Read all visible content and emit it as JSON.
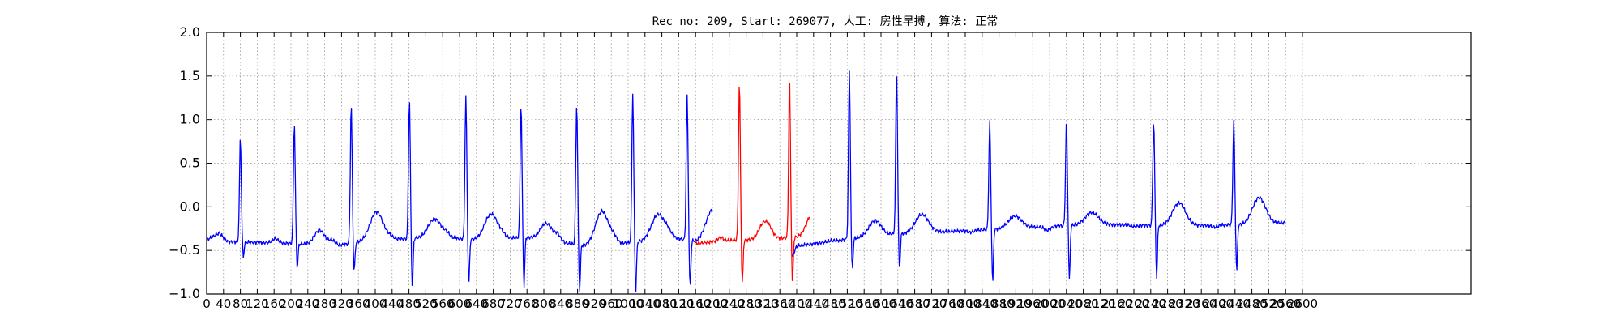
{
  "chart_data": {
    "type": "line",
    "title": "Rec_no: 209, Start: 269077, 人工: 房性早搏, 算法: 正常",
    "xlabel": "",
    "ylabel": "",
    "xlim": [
      0,
      3000
    ],
    "ylim": [
      -1.0,
      2.0
    ],
    "grid": true,
    "x_ticks": [
      0,
      40,
      80,
      120,
      160,
      200,
      240,
      280,
      320,
      360,
      400,
      440,
      480,
      520,
      560,
      600,
      640,
      680,
      720,
      760,
      800,
      840,
      880,
      920,
      960,
      1000,
      1040,
      1080,
      1120,
      1160,
      1200,
      1240,
      1280,
      1320,
      1360,
      1400,
      1440,
      1480,
      1520,
      1560,
      1600,
      1640,
      1680,
      1720,
      1760,
      1800,
      1840,
      1880,
      1920,
      1960,
      2000,
      2040,
      2080,
      2120,
      2160,
      2200,
      2240,
      2280,
      2320,
      2360,
      2400,
      2440,
      2480,
      2520,
      2560,
      2600
    ],
    "y_ticks": [
      -1.0,
      -0.5,
      0.0,
      0.5,
      1.0,
      1.5,
      2.0
    ],
    "x_tick_labels": [
      "0",
      "40",
      "80",
      "120",
      "160",
      "200",
      "240",
      "280",
      "320",
      "360",
      "400",
      "440",
      "480",
      "520",
      "560",
      "600",
      "640",
      "680",
      "720",
      "760",
      "800",
      "840",
      "880",
      "920",
      "960",
      "1000",
      "1040",
      "1080",
      "1120",
      "1160",
      "1200",
      "1240",
      "1280",
      "1320",
      "1360",
      "1400",
      "1440",
      "1480",
      "1520",
      "1560",
      "1600",
      "1640",
      "1680",
      "1720",
      "1760",
      "1800",
      "1840",
      "1880",
      "1920",
      "1960",
      "2000",
      "2040",
      "2080",
      "2120",
      "2160",
      "2200",
      "2240",
      "2280",
      "2320",
      "2360",
      "2400",
      "2440",
      "2480",
      "2520",
      "2560",
      "2600"
    ],
    "y_tick_labels": [
      "−1.0",
      "−0.5",
      "0.0",
      "0.5",
      "1.0",
      "1.5",
      "2.0"
    ],
    "series": [
      {
        "color": "#0000ff",
        "baseline": [
          [
            0,
            -0.38
          ],
          [
            30,
            -0.3
          ],
          [
            50,
            -0.4
          ],
          [
            200,
            -0.42
          ],
          [
            300,
            -0.45
          ],
          [
            400,
            -0.38
          ],
          [
            560,
            -0.35
          ],
          [
            640,
            -0.38
          ],
          [
            760,
            -0.35
          ],
          [
            900,
            -0.45
          ],
          [
            1030,
            -0.4
          ],
          [
            1100,
            -0.35
          ],
          [
            1160,
            -0.4
          ],
          [
            1200,
            -0.4
          ]
        ],
        "beats": [
          {
            "x": 80,
            "r": 0.78,
            "s": -0.58,
            "t": 0.0,
            "tw": 0.0,
            "p": 0.0
          },
          {
            "x": 208,
            "r": 0.96,
            "s": -0.7,
            "t": -0.25,
            "tw": 18,
            "p": -0.32
          },
          {
            "x": 343,
            "r": 1.17,
            "s": -0.75,
            "t": -0.1,
            "tw": 22,
            "p": -0.3
          },
          {
            "x": 481,
            "r": 1.23,
            "s": -0.93,
            "t": -0.15,
            "tw": 22,
            "p": -0.32
          },
          {
            "x": 615,
            "r": 1.26,
            "s": -0.88,
            "t": -0.08,
            "tw": 22,
            "p": -0.3
          },
          {
            "x": 746,
            "r": 1.18,
            "s": -0.92,
            "t": -0.16,
            "tw": 20,
            "p": -0.3
          },
          {
            "x": 878,
            "r": 1.18,
            "s": -0.95,
            "t": -0.05,
            "tw": 22,
            "p": -0.3
          },
          {
            "x": 1011,
            "r": 1.3,
            "s": -0.98,
            "t": -0.12,
            "tw": 22,
            "p": -0.3
          },
          {
            "x": 1140,
            "r": 1.26,
            "s": -0.92,
            "t": -0.02,
            "tw": 22,
            "p": -0.3
          }
        ]
      },
      {
        "color": "#ff0000",
        "baseline": [
          [
            1160,
            -0.42
          ],
          [
            1250,
            -0.38
          ],
          [
            1290,
            -0.38
          ],
          [
            1400,
            -0.35
          ],
          [
            1430,
            -0.32
          ]
        ],
        "beats": [
          {
            "x": 1264,
            "r": 1.42,
            "s": -0.88,
            "t": -0.18,
            "tw": 18,
            "p": -0.3
          },
          {
            "x": 1383,
            "r": 1.45,
            "s": -0.88,
            "t": -0.05,
            "tw": 22,
            "p": -0.3
          }
        ]
      },
      {
        "color": "#0000ff",
        "baseline": [
          [
            1390,
            -0.57
          ],
          [
            1400,
            -0.45
          ],
          [
            1600,
            -0.32
          ],
          [
            1900,
            -0.25
          ],
          [
            2100,
            -0.2
          ],
          [
            2300,
            -0.22
          ],
          [
            2500,
            -0.2
          ],
          [
            2560,
            -0.18
          ]
        ],
        "beats": [
          {
            "x": 1525,
            "r": 1.54,
            "s": -0.72,
            "t": -0.2,
            "tw": 20,
            "p": -0.35
          },
          {
            "x": 1637,
            "r": 1.54,
            "s": -0.72,
            "t": -0.1,
            "tw": 22,
            "p": -0.3
          },
          {
            "x": 1858,
            "r": 0.97,
            "s": -0.88,
            "t": -0.12,
            "tw": 22,
            "p": -0.3
          },
          {
            "x": 2040,
            "r": 0.97,
            "s": -0.85,
            "t": -0.08,
            "tw": 22,
            "p": -0.3
          },
          {
            "x": 2247,
            "r": 0.98,
            "s": -0.82,
            "t": 0.05,
            "tw": 22,
            "p": -0.25
          },
          {
            "x": 2437,
            "r": 0.98,
            "s": -0.75,
            "t": 0.1,
            "tw": 22,
            "p": -0.25
          }
        ]
      }
    ]
  }
}
